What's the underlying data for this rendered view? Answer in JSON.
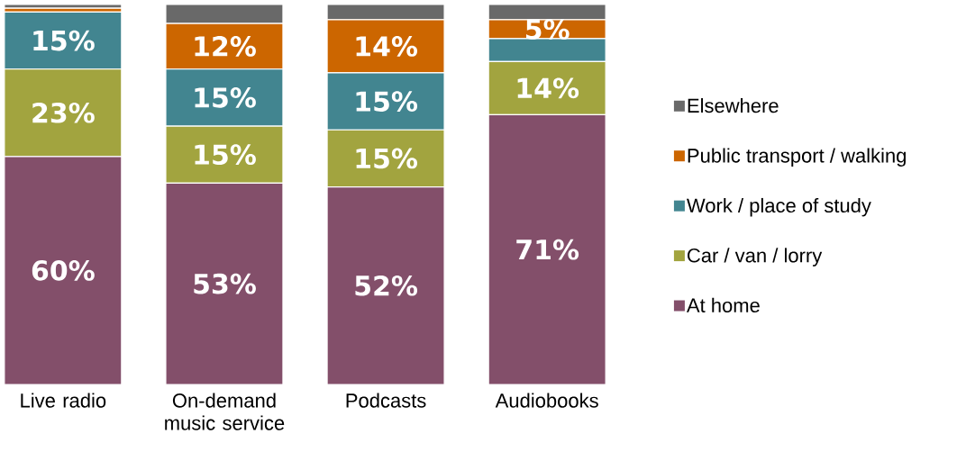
{
  "chart_data": {
    "type": "bar",
    "stacked": true,
    "legend": "right",
    "categories": [
      "Live radio",
      "On-demand music service",
      "Podcasts",
      "Audiobooks"
    ],
    "series": [
      {
        "name": "At home",
        "color": "#834f6a",
        "values": [
          60,
          53,
          52,
          71
        ],
        "value_labels": [
          "60%",
          "53%",
          "52%",
          "71%"
        ]
      },
      {
        "name": "Car / van / lorry",
        "color": "#a2a43f",
        "values": [
          23,
          15,
          15,
          14
        ],
        "value_labels": [
          "23%",
          "15%",
          "15%",
          "14%"
        ]
      },
      {
        "name": "Work / place of study",
        "color": "#428590",
        "values": [
          15,
          15,
          15,
          6
        ],
        "value_labels": [
          "15%",
          "15%",
          "15%",
          null
        ]
      },
      {
        "name": "Public transport / walking",
        "color": "#cc6600",
        "values": [
          1,
          12,
          14,
          5
        ],
        "value_labels": [
          null,
          "12%",
          "14%",
          "5%"
        ]
      },
      {
        "name": "Elsewhere",
        "color": "#696969",
        "values": [
          1,
          5,
          4,
          4
        ],
        "value_labels": [
          null,
          null,
          null,
          null
        ]
      }
    ]
  }
}
